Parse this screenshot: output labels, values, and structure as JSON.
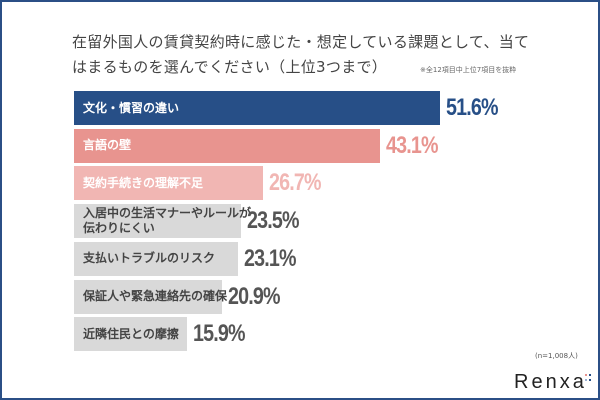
{
  "chart_data": {
    "type": "bar",
    "orientation": "horizontal",
    "title_line1": "在留外国人の賃貸契約時に感じた・想定している課題として、当て",
    "title_line2": "はまるものを選んでください（上位3つまで）",
    "note": "※全12項目中上位7項目を抜粋",
    "sample": "(n=1,008人)",
    "unit": "%",
    "categories": [
      "文化・慣習の違い",
      "言語の壁",
      "契約手続きの理解不足",
      "入居中の生活マナーやルールが伝わりにくい",
      "支払いトラブルのリスク",
      "保証人や緊急連絡先の確保",
      "近隣住民との摩擦"
    ],
    "category_lines": [
      [
        "文化・慣習の違い"
      ],
      [
        "言語の壁"
      ],
      [
        "契約手続きの理解不足"
      ],
      [
        "入居中の生活マナーやルールが",
        "伝わりにくい"
      ],
      [
        "支払いトラブルのリスク"
      ],
      [
        "保証人や緊急連絡先の確保"
      ],
      [
        "近隣住民との摩擦"
      ]
    ],
    "values": [
      51.6,
      43.1,
      26.7,
      23.5,
      23.1,
      20.9,
      15.9
    ],
    "value_labels": [
      "51.6%",
      "43.1%",
      "26.7%",
      "23.5%",
      "23.1%",
      "20.9%",
      "15.9%"
    ],
    "bar_colors": [
      "#274f87",
      "#e8948f",
      "#f1b6b3",
      "#d9d9d9",
      "#d9d9d9",
      "#d9d9d9",
      "#d9d9d9"
    ],
    "label_colors": [
      "#ffffff",
      "#ffffff",
      "#ffffff",
      "#444444",
      "#444444",
      "#444444",
      "#444444"
    ],
    "value_colors": [
      "#274f87",
      "#e8948f",
      "#f1b6b3",
      "#555555",
      "#555555",
      "#555555",
      "#555555"
    ],
    "xlim": [
      0,
      51.6
    ]
  },
  "brand": {
    "logo": "Renxa"
  }
}
